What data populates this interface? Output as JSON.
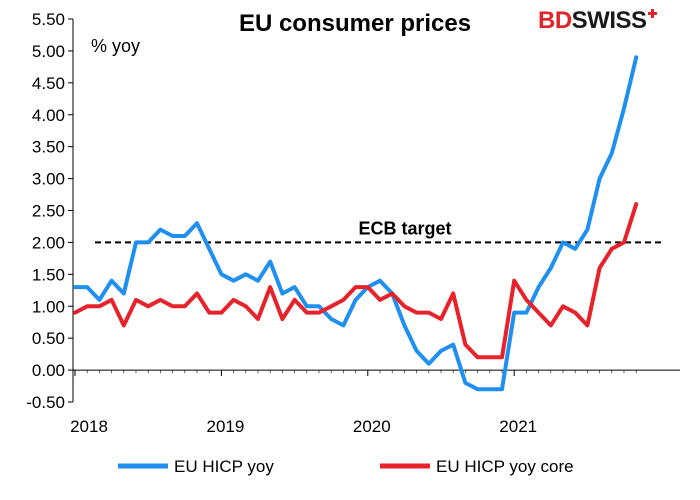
{
  "logo": {
    "part1": "BD",
    "part2": "SWISS"
  },
  "colors": {
    "series_blue": "#1f8ff0",
    "series_red": "#e8222a",
    "axis": "#000000",
    "target": "#000000"
  },
  "chart_data": {
    "type": "line",
    "title": "EU consumer prices",
    "ylabel": "% yoy",
    "xlabel": "",
    "ylim": [
      -0.5,
      5.5
    ],
    "y_ticks": [
      "5.50",
      "5.00",
      "4.50",
      "4.00",
      "3.50",
      "3.00",
      "2.50",
      "2.00",
      "1.50",
      "1.00",
      "0.50",
      "0.00",
      "-0.50"
    ],
    "x_tick_labels": [
      "2018",
      "2019",
      "2020",
      "2021"
    ],
    "grid": false,
    "legend_position": "bottom",
    "reference_line": {
      "label": "ECB target",
      "value": 2.0,
      "style": "dashed"
    },
    "x": [
      "2018-01",
      "2018-02",
      "2018-03",
      "2018-04",
      "2018-05",
      "2018-06",
      "2018-07",
      "2018-08",
      "2018-09",
      "2018-10",
      "2018-11",
      "2018-12",
      "2019-01",
      "2019-02",
      "2019-03",
      "2019-04",
      "2019-05",
      "2019-06",
      "2019-07",
      "2019-08",
      "2019-09",
      "2019-10",
      "2019-11",
      "2019-12",
      "2020-01",
      "2020-02",
      "2020-03",
      "2020-04",
      "2020-05",
      "2020-06",
      "2020-07",
      "2020-08",
      "2020-09",
      "2020-10",
      "2020-11",
      "2020-12",
      "2021-01",
      "2021-02",
      "2021-03",
      "2021-04",
      "2021-05",
      "2021-06",
      "2021-07",
      "2021-08",
      "2021-09",
      "2021-10",
      "2021-11"
    ],
    "series": [
      {
        "name": "EU HICP yoy",
        "values": [
          1.3,
          1.3,
          1.1,
          1.4,
          1.2,
          2.0,
          2.0,
          2.2,
          2.1,
          2.1,
          2.3,
          1.9,
          1.5,
          1.4,
          1.5,
          1.4,
          1.7,
          1.2,
          1.3,
          1.0,
          1.0,
          0.8,
          0.7,
          1.1,
          1.3,
          1.4,
          1.2,
          0.7,
          0.3,
          0.1,
          0.3,
          0.4,
          -0.2,
          -0.3,
          -0.3,
          -0.3,
          0.9,
          0.9,
          1.3,
          1.6,
          2.0,
          1.9,
          2.2,
          3.0,
          3.4,
          4.1,
          4.9
        ]
      },
      {
        "name": "EU HICP yoy core",
        "values": [
          0.9,
          1.0,
          1.0,
          1.1,
          0.7,
          1.1,
          1.0,
          1.1,
          1.0,
          1.0,
          1.2,
          0.9,
          0.9,
          1.1,
          1.0,
          0.8,
          1.3,
          0.8,
          1.1,
          0.9,
          0.9,
          1.0,
          1.1,
          1.3,
          1.3,
          1.1,
          1.2,
          1.0,
          0.9,
          0.9,
          0.8,
          1.2,
          0.4,
          0.2,
          0.2,
          0.2,
          1.4,
          1.1,
          0.9,
          0.7,
          1.0,
          0.9,
          0.7,
          1.6,
          1.9,
          2.0,
          2.6
        ]
      }
    ]
  }
}
